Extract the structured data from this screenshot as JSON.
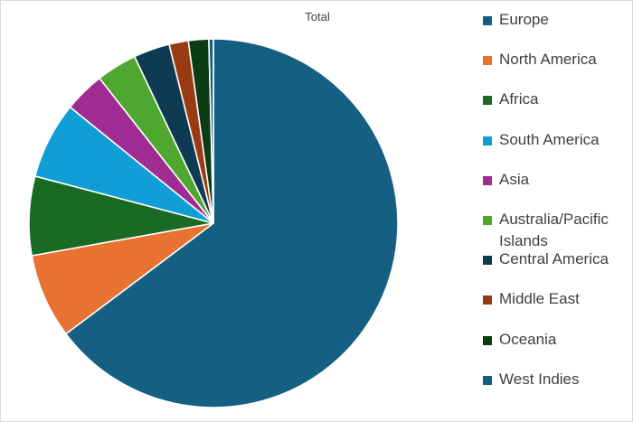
{
  "chart_data": {
    "type": "pie",
    "title": "Total",
    "categories": [
      "Europe",
      "North America",
      "Africa",
      "South America",
      "Asia",
      "Australia/Pacific Islands",
      "Central America",
      "Middle East",
      "Oceania",
      "West Indies"
    ],
    "values": [
      65.4,
      7.5,
      7.0,
      6.8,
      3.6,
      3.6,
      3.2,
      1.7,
      1.8,
      0.4
    ],
    "colors": [
      "#156082",
      "#E97132",
      "#196B24",
      "#0F9ED5",
      "#A02B93",
      "#4EA72E",
      "#0E3A52",
      "#9A3A12",
      "#0B3D12",
      "#156082"
    ],
    "legend_position": "right"
  }
}
